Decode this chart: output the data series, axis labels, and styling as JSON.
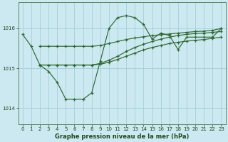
{
  "title": "Graphe pression niveau de la mer (hPa)",
  "background_color": "#cce8f0",
  "grid_color": "#99ccd9",
  "line_color": "#2d6a2d",
  "xlim": [
    -0.5,
    23.5
  ],
  "ylim": [
    1013.6,
    1016.65
  ],
  "yticks": [
    1014,
    1015,
    1016
  ],
  "x_labels": [
    "0",
    "1",
    "2",
    "3",
    "4",
    "5",
    "6",
    "7",
    "8",
    "9",
    "10",
    "11",
    "12",
    "13",
    "14",
    "15",
    "16",
    "17",
    "18",
    "19",
    "20",
    "21",
    "22",
    "23"
  ],
  "main_x": [
    0,
    1,
    2,
    3,
    4,
    5,
    6,
    7,
    8,
    9,
    10,
    11,
    12,
    13,
    14,
    15,
    16,
    17,
    18,
    19,
    20,
    21,
    22,
    23
  ],
  "main_y": [
    1015.85,
    1015.55,
    1015.08,
    1014.92,
    1014.65,
    1014.22,
    1014.22,
    1014.22,
    1014.38,
    1015.18,
    1016.0,
    1016.27,
    1016.32,
    1016.27,
    1016.1,
    1015.73,
    1015.88,
    1015.82,
    1015.47,
    1015.78,
    1015.78,
    1015.78,
    1015.78,
    1016.0
  ],
  "wedge_start": 2,
  "diag1_x": [
    2,
    3,
    4,
    5,
    6,
    7,
    8,
    9,
    10,
    11,
    12,
    13,
    14,
    15,
    16,
    17,
    18,
    19,
    20,
    21,
    22,
    23
  ],
  "diag1_y": [
    1015.08,
    1015.08,
    1015.08,
    1015.08,
    1015.08,
    1015.08,
    1015.08,
    1015.1,
    1015.15,
    1015.22,
    1015.3,
    1015.38,
    1015.46,
    1015.52,
    1015.57,
    1015.62,
    1015.65,
    1015.68,
    1015.7,
    1015.72,
    1015.75,
    1015.78
  ],
  "diag2_x": [
    2,
    3,
    4,
    5,
    6,
    7,
    8,
    9,
    10,
    11,
    12,
    13,
    14,
    15,
    16,
    17,
    18,
    19,
    20,
    21,
    22,
    23
  ],
  "diag2_y": [
    1015.08,
    1015.08,
    1015.08,
    1015.08,
    1015.08,
    1015.08,
    1015.08,
    1015.12,
    1015.2,
    1015.3,
    1015.42,
    1015.52,
    1015.6,
    1015.67,
    1015.73,
    1015.78,
    1015.82,
    1015.85,
    1015.87,
    1015.88,
    1015.9,
    1015.92
  ],
  "diag3_x": [
    2,
    3,
    4,
    5,
    6,
    7,
    8,
    9,
    10,
    11,
    12,
    13,
    14,
    15,
    16,
    17,
    18,
    19,
    20,
    21,
    22,
    23
  ],
  "diag3_y": [
    1015.55,
    1015.55,
    1015.55,
    1015.55,
    1015.55,
    1015.55,
    1015.55,
    1015.57,
    1015.62,
    1015.67,
    1015.72,
    1015.76,
    1015.79,
    1015.82,
    1015.84,
    1015.86,
    1015.88,
    1015.9,
    1015.92,
    1015.93,
    1015.95,
    1016.0
  ],
  "bottom_label_color": "#1a4a1a",
  "tick_fontsize": 5,
  "label_fontsize": 6
}
